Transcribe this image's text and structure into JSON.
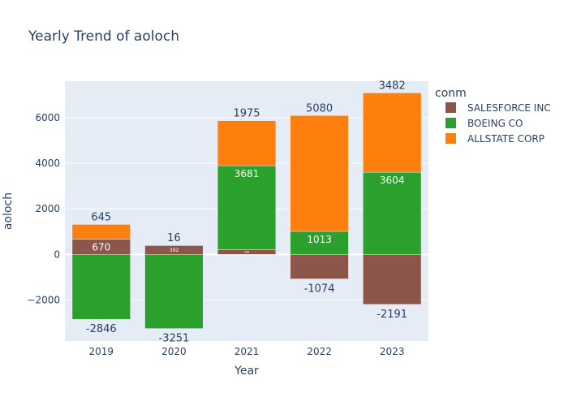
{
  "chart_data": {
    "type": "bar",
    "barmode": "relative",
    "title": "Yearly Trend of aoloch",
    "xlabel": "Year",
    "ylabel": "aoloch",
    "categories": [
      "2019",
      "2020",
      "2021",
      "2022",
      "2023"
    ],
    "ylim": [
      -3800,
      7600
    ],
    "yticks": [
      -2000,
      0,
      2000,
      4000,
      6000
    ],
    "ytick_labels": [
      "−2000",
      "0",
      "2000",
      "4000",
      "6000"
    ],
    "legend": {
      "title": "conm",
      "placement": "top-right",
      "entries": [
        "SALESFORCE INC",
        "BOEING CO",
        "ALLSTATE CORP"
      ]
    },
    "series": [
      {
        "name": "SALESFORCE INC",
        "color": "#8c564b",
        "values": [
          670,
          392,
          208,
          -1074,
          -2191
        ],
        "labels": [
          "670",
          "392",
          "208",
          "-1074",
          "-2191"
        ]
      },
      {
        "name": "BOEING CO",
        "color": "#2ca02c",
        "values": [
          -2846,
          -3251,
          3681,
          1013,
          3604
        ],
        "labels": [
          "-2846",
          "-3251",
          "3681",
          "1013",
          "3604"
        ]
      },
      {
        "name": "ALLSTATE CORP",
        "color": "#ff7f0e",
        "values": [
          645,
          16,
          1975,
          5080,
          3482
        ],
        "labels": [
          "645",
          "16",
          "1975",
          "5080",
          "3482"
        ]
      }
    ]
  }
}
